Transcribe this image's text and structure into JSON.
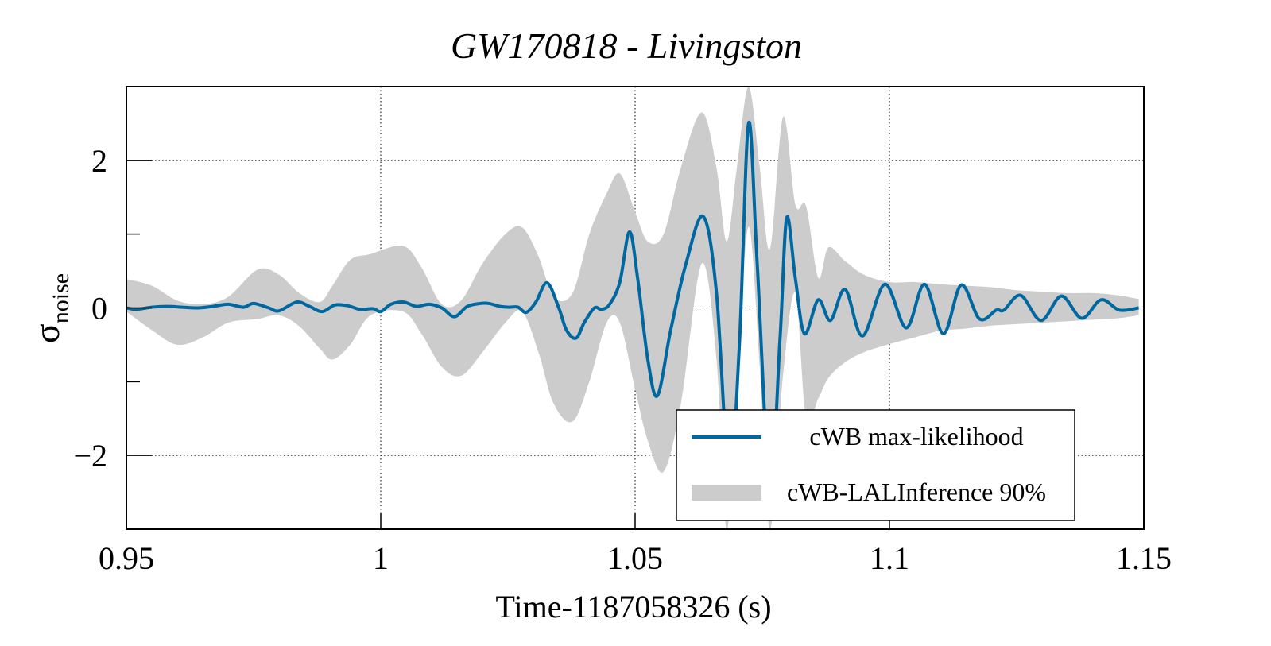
{
  "chart_data": {
    "type": "line",
    "title": "GW170818 - Livingston",
    "xlabel": "Time-1187058326 (s)",
    "ylabel": "σ",
    "ylabel_subscript": "noise",
    "xlim": [
      0.95,
      1.15
    ],
    "ylim": [
      -3,
      3
    ],
    "grid": true,
    "x_ticks": [
      0.95,
      1.0,
      1.05,
      1.1,
      1.15
    ],
    "x_tick_labels": [
      "0.95",
      "1",
      "1.05",
      "1.1",
      "1.15"
    ],
    "y_major_ticks": [
      -2,
      0,
      2
    ],
    "y_tick_labels": [
      "−2",
      "0",
      "2"
    ],
    "y_minor_ticks": [
      -3,
      -1,
      1,
      3
    ],
    "legend_position": "bottom-right",
    "colors": {
      "line": "#0068a0",
      "band": "#cccccc"
    },
    "series": [
      {
        "name": "cWB max-likelihood",
        "kind": "line",
        "x": [
          0.95,
          0.952,
          0.955,
          0.958,
          0.961,
          0.964,
          0.967,
          0.97,
          0.973,
          0.975,
          0.978,
          0.98,
          0.9835,
          0.986,
          0.9885,
          0.991,
          0.9935,
          0.996,
          0.9985,
          1.0,
          1.002,
          1.0045,
          1.007,
          1.0095,
          1.012,
          1.0145,
          1.017,
          1.0195,
          1.0213,
          1.0235,
          1.0252,
          1.027,
          1.0286,
          1.0305,
          1.0327,
          1.035,
          1.0365,
          1.0384,
          1.04,
          1.042,
          1.0434,
          1.045,
          1.047,
          1.0489,
          1.0505,
          1.0525,
          1.0544,
          1.057,
          1.06,
          1.0634,
          1.066,
          1.0685,
          1.0705,
          1.0723,
          1.074,
          1.0765,
          1.0785,
          1.0798,
          1.0815,
          1.0833,
          1.086,
          1.0884,
          1.0913,
          1.0947,
          1.0991,
          1.1033,
          1.1069,
          1.1106,
          1.1141,
          1.1177,
          1.121,
          1.1225,
          1.1258,
          1.1298,
          1.1338,
          1.1378,
          1.1416,
          1.1452,
          1.149
        ],
        "y": [
          0.0,
          -0.02,
          0.01,
          0.02,
          0.01,
          0.0,
          0.02,
          0.05,
          0.01,
          0.06,
          0.0,
          -0.04,
          0.08,
          0.02,
          -0.05,
          0.04,
          0.03,
          -0.02,
          -0.01,
          -0.05,
          0.05,
          0.08,
          0.02,
          0.05,
          0.0,
          -0.12,
          0.02,
          0.06,
          0.06,
          0.02,
          0.01,
          0.01,
          -0.06,
          0.08,
          0.34,
          0.0,
          -0.3,
          -0.41,
          -0.2,
          0.0,
          -0.02,
          0.05,
          0.35,
          1.03,
          0.4,
          -0.7,
          -1.19,
          -0.3,
          0.6,
          1.24,
          0.2,
          -2.3,
          -0.5,
          2.5,
          0.6,
          -2.4,
          -0.4,
          1.22,
          0.4,
          -0.35,
          0.11,
          -0.17,
          0.25,
          -0.38,
          0.32,
          -0.27,
          0.32,
          -0.35,
          0.31,
          -0.15,
          -0.03,
          -0.03,
          0.17,
          -0.17,
          0.16,
          -0.14,
          0.11,
          -0.03,
          0.0
        ]
      },
      {
        "name": "cWB-LALInference 90%",
        "kind": "band",
        "x": [
          0.95,
          0.955,
          0.96,
          0.965,
          0.97,
          0.9758,
          0.98,
          0.984,
          0.988,
          0.9905,
          0.994,
          0.998,
          1.0044,
          1.008,
          1.012,
          1.0158,
          1.02,
          1.0245,
          1.0278,
          1.031,
          1.034,
          1.0377,
          1.041,
          1.0444,
          1.047,
          1.05,
          1.0525,
          1.0556,
          1.059,
          1.0631,
          1.066,
          1.068,
          1.07,
          1.0723,
          1.0745,
          1.0765,
          1.0791,
          1.0815,
          1.0836,
          1.086,
          1.088,
          1.0912,
          1.095,
          1.1,
          1.105,
          1.11,
          1.115,
          1.12,
          1.125,
          1.13,
          1.135,
          1.14,
          1.145,
          1.149
        ],
        "upper": [
          0.39,
          0.3,
          0.1,
          0.05,
          0.15,
          0.52,
          0.45,
          0.2,
          0.08,
          0.3,
          0.65,
          0.73,
          0.84,
          0.55,
          0.05,
          0.1,
          0.6,
          1.0,
          1.09,
          0.7,
          0.15,
          0.2,
          1.0,
          1.55,
          1.82,
          1.3,
          0.9,
          1.0,
          1.9,
          2.65,
          1.9,
          0.9,
          1.9,
          3.0,
          1.9,
          0.8,
          2.59,
          1.4,
          1.38,
          0.41,
          0.82,
          0.64,
          0.45,
          0.35,
          0.35,
          0.32,
          0.3,
          0.28,
          0.24,
          0.22,
          0.2,
          0.2,
          0.17,
          0.12
        ],
        "lower": [
          -0.05,
          -0.3,
          -0.5,
          -0.4,
          -0.2,
          -0.15,
          -0.1,
          -0.25,
          -0.55,
          -0.7,
          -0.5,
          -0.1,
          -0.05,
          -0.35,
          -0.8,
          -0.92,
          -0.6,
          -0.2,
          -0.05,
          -0.6,
          -1.3,
          -1.54,
          -1.0,
          -0.2,
          -0.2,
          -1.1,
          -1.8,
          -2.22,
          -1.3,
          0.6,
          -0.7,
          -3.0,
          -1.0,
          1.1,
          -0.8,
          -3.0,
          -0.9,
          0.2,
          -1.5,
          -1.23,
          -0.95,
          -0.74,
          -0.6,
          -0.49,
          -0.4,
          -0.31,
          -0.28,
          -0.24,
          -0.22,
          -0.2,
          -0.18,
          -0.16,
          -0.14,
          -0.1
        ]
      }
    ]
  }
}
